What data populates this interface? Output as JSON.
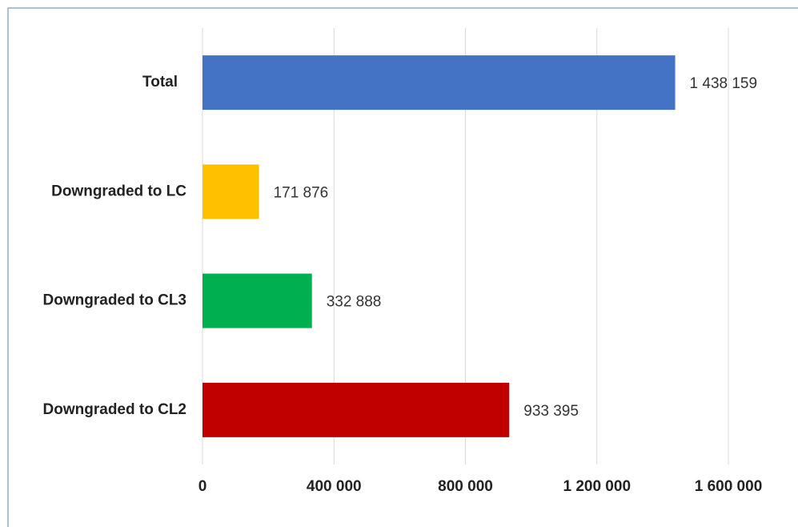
{
  "chart_data": {
    "type": "hbar",
    "categories": [
      "Total",
      "Downgraded to LC",
      "Downgraded to CL3",
      "Downgraded to CL2"
    ],
    "values": [
      1438159,
      171876,
      332888,
      933395
    ],
    "value_labels": [
      "1 438 159",
      "171 876",
      "332 888",
      "933 395"
    ],
    "colors": [
      "#4472c4",
      "#ffc000",
      "#00b050",
      "#c00000"
    ],
    "xlim": [
      0,
      1600000
    ],
    "xticks": [
      0,
      {
        "value": 400000,
        "label": "400 000"
      },
      {
        "value": 800000,
        "label": "800 000"
      },
      {
        "value": 1200000,
        "label": "1 200 000"
      },
      {
        "value": 1600000,
        "label": "1 600 000"
      }
    ],
    "grid": true
  }
}
